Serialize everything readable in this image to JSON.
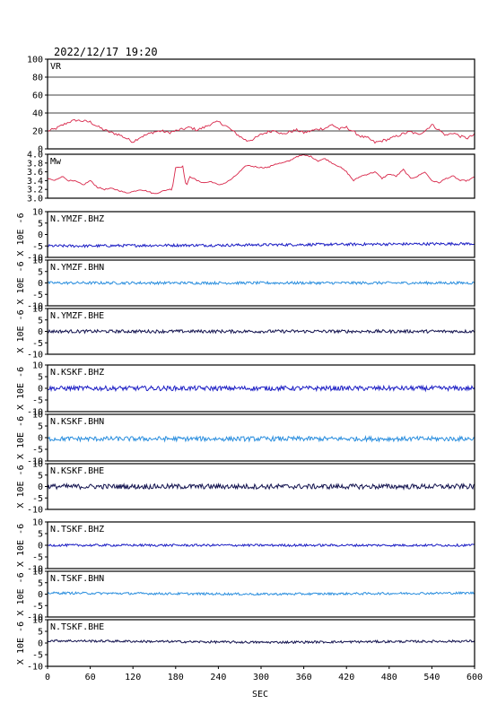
{
  "chart_data": {
    "type": "line",
    "title": "2022/12/17 19:20",
    "xlabel": "SEC",
    "xlim": [
      0,
      600
    ],
    "xticks": [
      "0",
      "60",
      "120",
      "180",
      "240",
      "300",
      "360",
      "420",
      "480",
      "540",
      "600"
    ],
    "grid": false,
    "panels": [
      {
        "id": "vr",
        "label": "VR",
        "ylabel": "",
        "ylim": [
          0,
          100
        ],
        "yticks": [
          "100",
          "80",
          "60",
          "40",
          "20",
          "0"
        ],
        "hgrid": [
          20,
          40,
          60,
          80
        ],
        "color": "#d8274a",
        "x": [
          0,
          10,
          20,
          30,
          40,
          50,
          60,
          70,
          80,
          90,
          100,
          110,
          120,
          130,
          140,
          150,
          160,
          170,
          180,
          190,
          200,
          210,
          220,
          230,
          240,
          250,
          260,
          270,
          280,
          290,
          300,
          310,
          320,
          330,
          340,
          350,
          360,
          370,
          380,
          390,
          400,
          410,
          420,
          430,
          440,
          450,
          460,
          470,
          480,
          490,
          500,
          510,
          520,
          530,
          540,
          550,
          560,
          570,
          580,
          590,
          600
        ],
        "values": [
          20,
          22,
          26,
          30,
          32,
          31,
          30,
          25,
          21,
          18,
          16,
          12,
          8,
          13,
          16,
          19,
          20,
          18,
          20,
          22,
          24,
          21,
          24,
          28,
          30,
          26,
          20,
          14,
          9,
          11,
          16,
          19,
          21,
          16,
          19,
          21,
          18,
          20,
          22,
          23,
          27,
          22,
          24,
          19,
          14,
          12,
          7,
          9,
          11,
          14,
          17,
          19,
          16,
          20,
          27,
          21,
          15,
          18,
          14,
          12,
          16
        ]
      },
      {
        "id": "mw",
        "label": "Mw",
        "ylabel": "",
        "ylim": [
          3.0,
          4.0
        ],
        "yticks": [
          "4.0",
          "3.8",
          "3.6",
          "3.4",
          "3.2",
          "3.0"
        ],
        "hgrid": [],
        "color": "#d8274a",
        "x": [
          0,
          10,
          20,
          30,
          40,
          50,
          60,
          70,
          80,
          90,
          100,
          110,
          120,
          130,
          140,
          150,
          160,
          170,
          175,
          180,
          190,
          195,
          200,
          210,
          220,
          230,
          240,
          250,
          260,
          270,
          280,
          290,
          300,
          310,
          320,
          330,
          340,
          350,
          360,
          370,
          380,
          390,
          400,
          410,
          420,
          430,
          440,
          450,
          460,
          470,
          480,
          490,
          500,
          510,
          520,
          530,
          540,
          550,
          560,
          570,
          580,
          590,
          600
        ],
        "values": [
          3.45,
          3.4,
          3.5,
          3.4,
          3.38,
          3.3,
          3.4,
          3.25,
          3.2,
          3.22,
          3.18,
          3.12,
          3.15,
          3.2,
          3.16,
          3.1,
          3.15,
          3.2,
          3.2,
          3.7,
          3.72,
          3.25,
          3.5,
          3.4,
          3.35,
          3.38,
          3.3,
          3.35,
          3.45,
          3.6,
          3.75,
          3.72,
          3.7,
          3.7,
          3.78,
          3.8,
          3.85,
          3.95,
          3.98,
          3.95,
          3.85,
          3.9,
          3.8,
          3.72,
          3.6,
          3.4,
          3.5,
          3.55,
          3.6,
          3.45,
          3.55,
          3.5,
          3.65,
          3.45,
          3.5,
          3.6,
          3.4,
          3.35,
          3.45,
          3.5,
          3.4,
          3.4,
          3.48
        ]
      },
      {
        "id": "ymzf-bhz",
        "label": "N.YMZF.BHZ",
        "ylabel": "X 10E -6",
        "ylim": [
          -10,
          10
        ],
        "yticks": [
          "10",
          "5",
          "0",
          "-5",
          "-10"
        ],
        "hgrid": [],
        "color": "#1c1ec4",
        "x": [
          0,
          60,
          120,
          180,
          240,
          300,
          360,
          420,
          480,
          540,
          600
        ],
        "values": [
          -5.0,
          -5.0,
          -4.8,
          -4.7,
          -4.7,
          -4.5,
          -4.4,
          -4.3,
          -4.2,
          -4.1,
          -4.0
        ],
        "amplitude": 0.6
      },
      {
        "id": "ymzf-bhn",
        "label": "N.YMZF.BHN",
        "ylabel": "X 10E -6",
        "ylim": [
          -10,
          10
        ],
        "yticks": [
          "10",
          "5",
          "0",
          "-5",
          "-10"
        ],
        "hgrid": [],
        "color": "#2a8ede",
        "x": [
          0,
          600
        ],
        "values": [
          0,
          0
        ],
        "amplitude": 0.6
      },
      {
        "id": "ymzf-bhe",
        "label": "N.YMZF.BHE",
        "ylabel": "X 10E -6",
        "ylim": [
          -10,
          10
        ],
        "yticks": [
          "10",
          "5",
          "0",
          "-5",
          "-10"
        ],
        "hgrid": [],
        "color": "#12124e",
        "x": [
          0,
          600
        ],
        "values": [
          0,
          0
        ],
        "amplitude": 0.7
      },
      {
        "id": "kskf-bhz",
        "label": "N.KSKF.BHZ",
        "ylabel": "X 10E -6",
        "ylim": [
          -10,
          10
        ],
        "yticks": [
          "10",
          "5",
          "0",
          "-5",
          "-10"
        ],
        "hgrid": [],
        "color": "#1c1ec4",
        "x": [
          0,
          600
        ],
        "values": [
          0,
          0
        ],
        "amplitude": 1.0
      },
      {
        "id": "kskf-bhn",
        "label": "N.KSKF.BHN",
        "ylabel": "X 10E -6",
        "ylim": [
          -10,
          10
        ],
        "yticks": [
          "10",
          "5",
          "0",
          "-5",
          "-10"
        ],
        "hgrid": [],
        "color": "#2a8ede",
        "x": [
          0,
          600
        ],
        "values": [
          -0.5,
          -0.5
        ],
        "amplitude": 1.0
      },
      {
        "id": "kskf-bhe",
        "label": "N.KSKF.BHE",
        "ylabel": "X 10E -6",
        "ylim": [
          -10,
          10
        ],
        "yticks": [
          "10",
          "5",
          "0",
          "-5",
          "-10"
        ],
        "hgrid": [],
        "color": "#12124e",
        "x": [
          0,
          600
        ],
        "values": [
          0,
          0
        ],
        "amplitude": 1.1
      },
      {
        "id": "tskf-bhz",
        "label": "N.TSKF.BHZ",
        "ylabel": "X 10E -6",
        "ylim": [
          -10,
          10
        ],
        "yticks": [
          "10",
          "5",
          "0",
          "-5",
          "-10"
        ],
        "hgrid": [],
        "color": "#1c1ec4",
        "x": [
          0,
          600
        ],
        "values": [
          0,
          0
        ],
        "amplitude": 0.5
      },
      {
        "id": "tskf-bhn",
        "label": "N.TSKF.BHN",
        "ylabel": "X 10E -6",
        "ylim": [
          -10,
          10
        ],
        "yticks": [
          "10",
          "5",
          "0",
          "-5",
          "-10"
        ],
        "hgrid": [],
        "color": "#2a8ede",
        "x": [
          0,
          300,
          600
        ],
        "values": [
          0.5,
          0,
          0.5
        ],
        "amplitude": 0.5
      },
      {
        "id": "tskf-bhe",
        "label": "N.TSKF.BHE",
        "ylabel": "X 10E -6",
        "ylim": [
          -10,
          10
        ],
        "yticks": [
          "10",
          "5",
          "0",
          "-5",
          "-10"
        ],
        "hgrid": [],
        "color": "#12124e",
        "x": [
          0,
          300,
          600
        ],
        "values": [
          1.0,
          0.3,
          0.8
        ],
        "amplitude": 0.5
      }
    ]
  }
}
